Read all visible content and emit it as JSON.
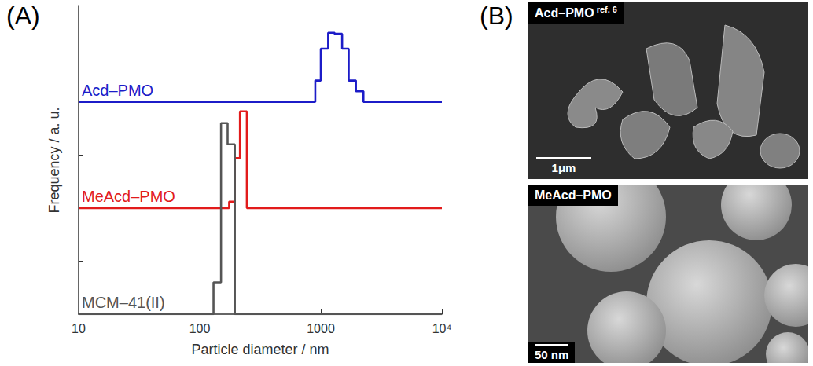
{
  "chart_data": {
    "type": "histogram",
    "xlabel": "Particle diameter / nm",
    "ylabel": "Frequency / a. u.",
    "log": "x",
    "xlim": [
      10,
      10000
    ],
    "xticks": [
      10,
      100,
      1000,
      {
        "value": 10000,
        "label": "10⁴"
      }
    ],
    "ylim": [
      0,
      2.9
    ],
    "yticks": [
      0,
      0.5,
      1,
      1.5,
      2,
      2.5
    ],
    "tick_labels": "x",
    "grid": false,
    "series": [
      {
        "name": "Acd–PMO",
        "color": "#1c1cc8",
        "offset": 2,
        "bins": [
          900,
          1000,
          1150,
          1300,
          1500,
          1700,
          1950,
          2250
        ],
        "values": [
          0.2,
          0.5,
          0.65,
          0.64,
          0.5,
          0.2,
          0.1
        ]
      },
      {
        "name": "MeAcd–PMO",
        "color": "#e21b1b",
        "offset": 1,
        "bins": [
          175,
          195,
          215,
          245
        ],
        "values": [
          0.06,
          0.47,
          0.91
        ]
      },
      {
        "name": "MCM–41(II)",
        "color": "#555555",
        "offset": 0,
        "bins": [
          130,
          150,
          170,
          195
        ],
        "values": [
          0.3,
          1.8,
          1.6
        ]
      }
    ]
  },
  "panels": {
    "A": "(A)",
    "B": "(B)"
  },
  "images": [
    {
      "label": "Acd–PMO",
      "ref": "ref. 6",
      "scale_bar": "1μm"
    },
    {
      "label": "MeAcd–PMO",
      "scale_bar": "50 nm"
    }
  ]
}
